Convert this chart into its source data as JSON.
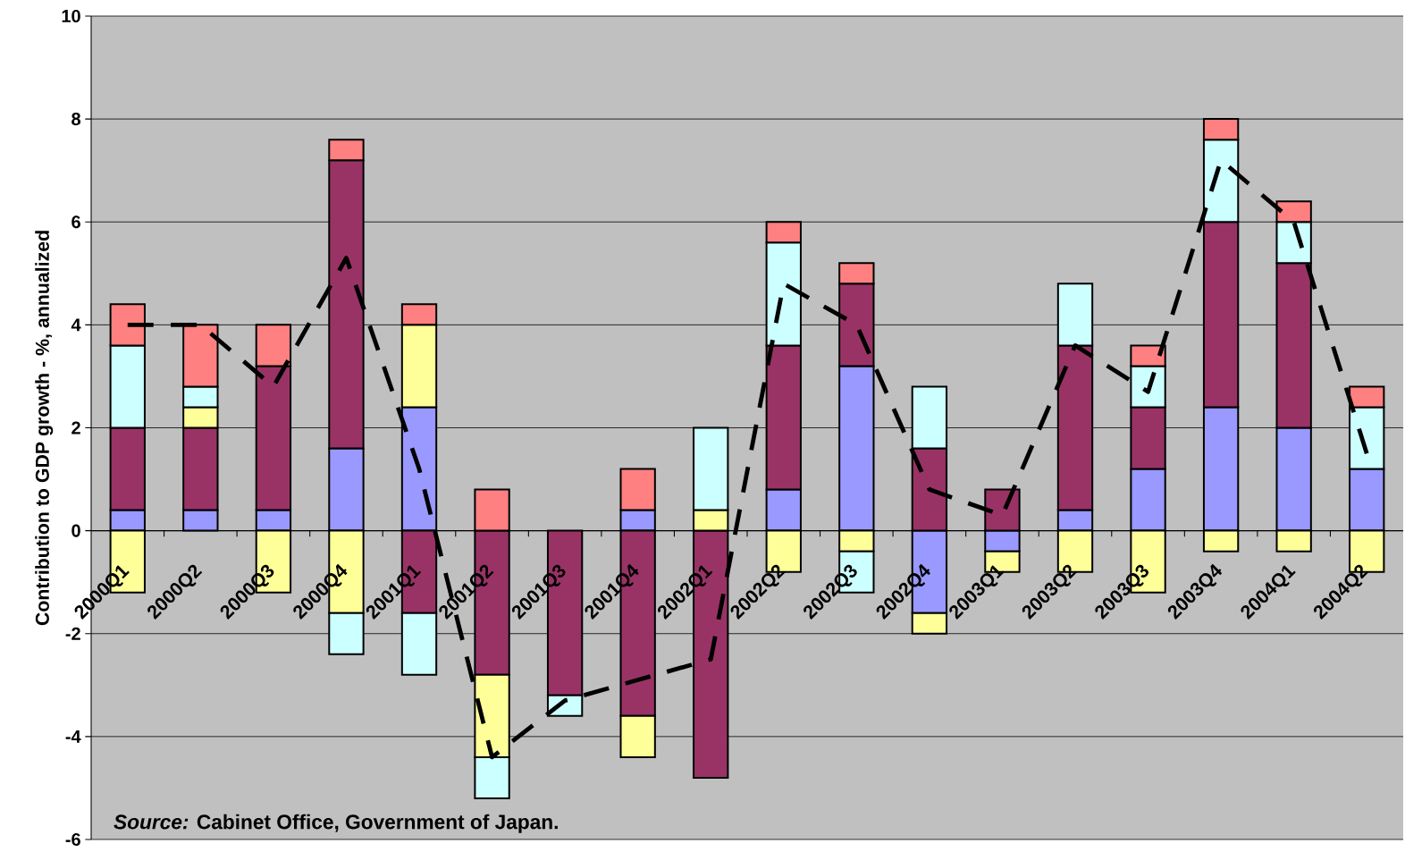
{
  "chart_data": {
    "type": "bar",
    "stacked": true,
    "ylabel": "Contribution to GDP growth - %, annualized",
    "annotations": [
      "*Source:*  Cabinet Office, Government of Japan."
    ],
    "categories": [
      "2000Q1",
      "2000Q2",
      "2000Q3",
      "2000Q4",
      "2001Q1",
      "2001Q2",
      "2001Q3",
      "2001Q4",
      "2002Q1",
      "2002Q2",
      "2002Q3",
      "2002Q4",
      "2003Q1",
      "2003Q2",
      "2003Q3",
      "2003Q4",
      "2004Q1",
      "2004Q2"
    ],
    "ylim": [
      -6,
      10
    ],
    "yticks": [
      -6,
      -4,
      -2,
      0,
      2,
      4,
      6,
      8,
      10
    ],
    "grid": "y",
    "series": [
      {
        "color": "#9999ff",
        "values": [
          0.4,
          0.4,
          0.4,
          1.6,
          2.4,
          null,
          null,
          0.4,
          null,
          0.8,
          3.2,
          -1.6,
          -0.4,
          0.4,
          1.2,
          2.4,
          2.0,
          1.2
        ]
      },
      {
        "color": "#993366",
        "values": [
          1.6,
          1.6,
          2.8,
          5.6,
          -1.6,
          -2.8,
          -3.2,
          -3.6,
          -4.8,
          2.8,
          1.6,
          1.6,
          0.8,
          3.2,
          1.2,
          3.6,
          3.2,
          null
        ]
      },
      {
        "color": "#ffff99",
        "values": [
          -1.2,
          0.4,
          -1.2,
          -1.6,
          1.6,
          -1.6,
          null,
          -0.8,
          0.4,
          -0.8,
          -0.4,
          -0.4,
          -0.4,
          -0.8,
          -1.2,
          -0.4,
          -0.4,
          -0.8
        ]
      },
      {
        "color": "#ccffff",
        "values": [
          1.6,
          0.4,
          null,
          -0.8,
          -1.2,
          -0.8,
          -0.4,
          null,
          1.6,
          2.0,
          -0.8,
          1.2,
          null,
          1.2,
          0.8,
          1.6,
          0.8,
          1.2
        ]
      },
      {
        "color": "#ff8080",
        "values": [
          0.8,
          1.2,
          0.8,
          0.4,
          0.4,
          0.8,
          null,
          0.8,
          null,
          0.4,
          0.4,
          null,
          null,
          null,
          0.4,
          0.4,
          0.4,
          0.4
        ]
      },
      {
        "type": "line",
        "color": "#000000",
        "line_style": "dashed",
        "marker": "none",
        "values": [
          4.0,
          4.0,
          2.8,
          5.3,
          1.2,
          -4.4,
          -3.3,
          -2.9,
          -2.5,
          4.8,
          4.0,
          0.8,
          0.3,
          3.6,
          2.7,
          7.2,
          6.0,
          1.5
        ]
      }
    ]
  }
}
